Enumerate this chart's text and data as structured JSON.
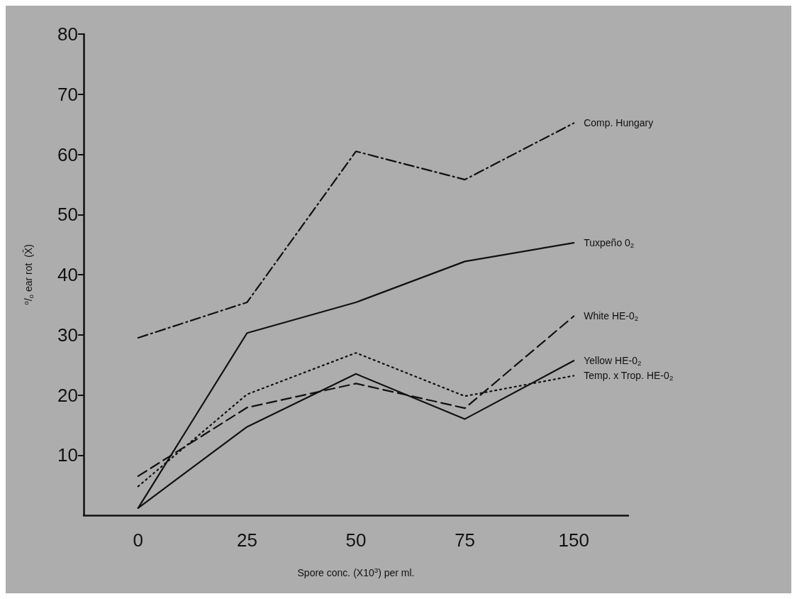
{
  "chart_data": {
    "type": "line",
    "xlabel": "Spore conc. (X10$^{3}$) per ml.",
    "ylabel": "$^{o}$/$_{o}$ ear rot  (X̄)",
    "categories": [
      "0",
      "25",
      "50",
      "75",
      "150"
    ],
    "ylim": [
      0,
      80
    ],
    "yticks": [
      10,
      20,
      30,
      40,
      50,
      60,
      70,
      80
    ],
    "grid": false,
    "legend": false,
    "marker": "none",
    "series": [
      {
        "name": "Comp. Hungary",
        "color": "#111111",
        "line_style": "dashdot",
        "values": [
          29.5,
          35.4,
          60.5,
          55.8,
          65.2
        ]
      },
      {
        "name": "Tuxpeño 0$_{2}$",
        "color": "#111111",
        "line_style": "solid",
        "values": [
          1.2,
          30.3,
          35.4,
          42.2,
          45.3
        ]
      },
      {
        "name": "White HE-0$_{2}$",
        "color": "#111111",
        "line_style": "dashed",
        "values": [
          6.5,
          17.9,
          21.9,
          17.8,
          33.1
        ]
      },
      {
        "name": "Yellow HE-0$_{2}$",
        "color": "#111111",
        "line_style": "solid",
        "values": [
          1.2,
          14.7,
          23.5,
          16,
          25.7
        ]
      },
      {
        "name": "Temp. x Trop. HE-0$_{2}$",
        "color": "#111111",
        "line_style": "dotted",
        "values": [
          4.8,
          20.1,
          27,
          19.8,
          23.2
        ]
      }
    ]
  }
}
